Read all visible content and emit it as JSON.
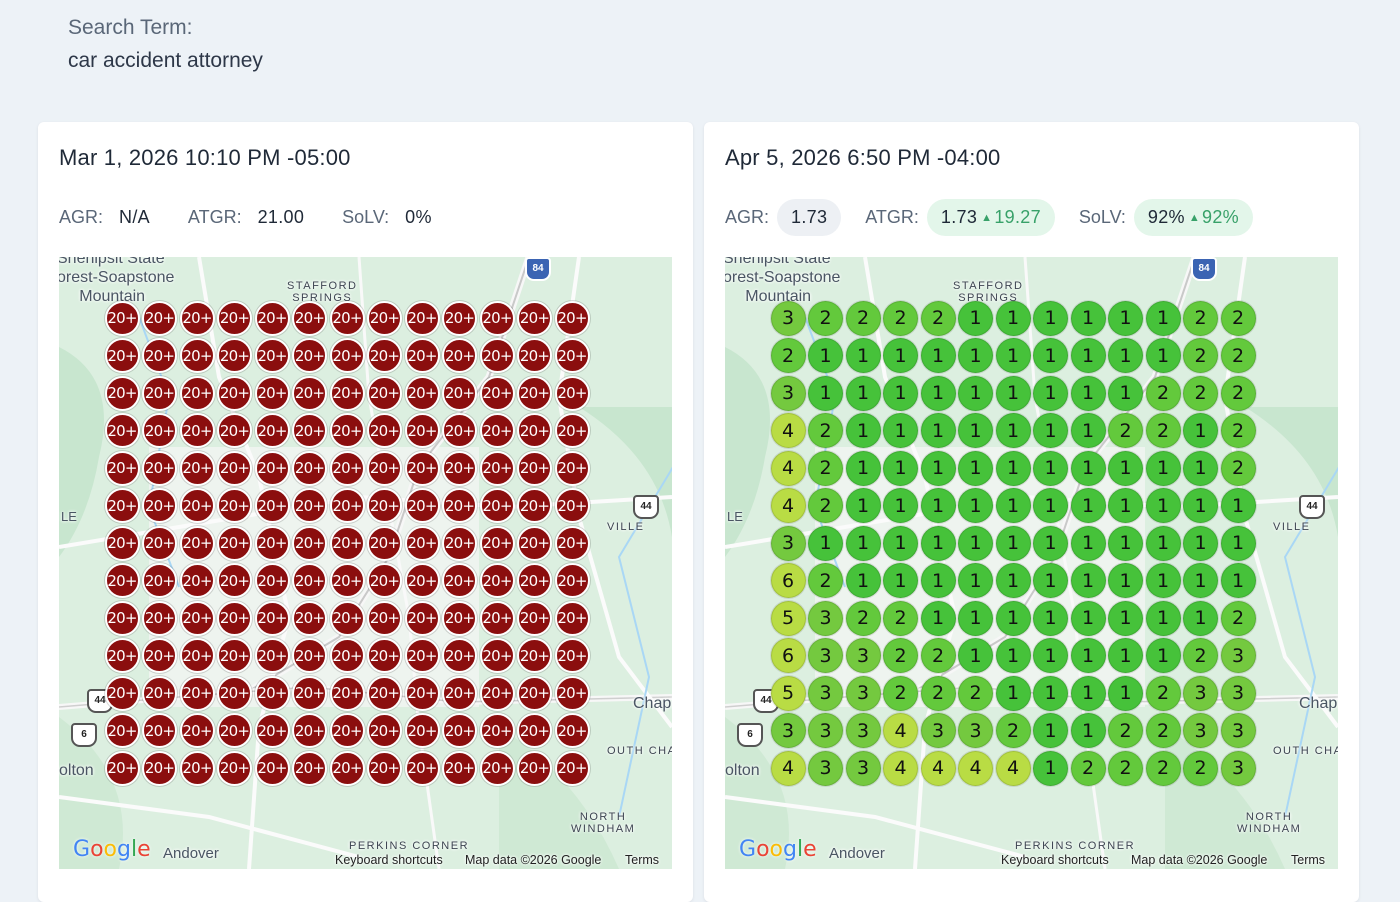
{
  "search": {
    "label": "Search Term:",
    "term": "car accident attorney"
  },
  "colors": {
    "rank_1": "#46c23a",
    "rank_2": "#63c93c",
    "rank_3": "#74c93f",
    "rank_4_6": "#b9dc44",
    "rank_20_plus": "#8b0e0e",
    "improvement": "#38a169"
  },
  "map": {
    "labels": {
      "park": [
        "Shenipsit State",
        "orest-Soapstone",
        "Mountain"
      ],
      "stafford": [
        "STAFFORD",
        "SPRINGS"
      ],
      "le": "LE",
      "olton": "olton",
      "andover": "Andover",
      "perkins": "PERKINS CORNER",
      "north_windham": [
        "NORTH",
        "WINDHAM"
      ],
      "chapl": "Chapl",
      "ville": "VILLE",
      "south_cha": "OUTH CHA"
    },
    "shields": {
      "i84": "84",
      "us44_a": "44",
      "us44_b": "44",
      "r6": "6"
    },
    "attribution": {
      "logo": "Google",
      "keyboard": "Keyboard shortcuts",
      "mapdata": "Map data ©2026 Google",
      "terms": "Terms"
    }
  },
  "cards": [
    {
      "date": "Mar 1, 2026 10:10 PM -05:00",
      "agr_label": "AGR:",
      "agr": "N/A",
      "atgr_label": "ATGR:",
      "atgr": "21.00",
      "atgr_delta": "",
      "solv_label": "SoLV:",
      "solv": "0%",
      "solv_delta": "",
      "grid": [
        [
          "20+",
          "20+",
          "20+",
          "20+",
          "20+",
          "20+",
          "20+",
          "20+",
          "20+",
          "20+",
          "20+",
          "20+",
          "20+"
        ],
        [
          "20+",
          "20+",
          "20+",
          "20+",
          "20+",
          "20+",
          "20+",
          "20+",
          "20+",
          "20+",
          "20+",
          "20+",
          "20+"
        ],
        [
          "20+",
          "20+",
          "20+",
          "20+",
          "20+",
          "20+",
          "20+",
          "20+",
          "20+",
          "20+",
          "20+",
          "20+",
          "20+"
        ],
        [
          "20+",
          "20+",
          "20+",
          "20+",
          "20+",
          "20+",
          "20+",
          "20+",
          "20+",
          "20+",
          "20+",
          "20+",
          "20+"
        ],
        [
          "20+",
          "20+",
          "20+",
          "20+",
          "20+",
          "20+",
          "20+",
          "20+",
          "20+",
          "20+",
          "20+",
          "20+",
          "20+"
        ],
        [
          "20+",
          "20+",
          "20+",
          "20+",
          "20+",
          "20+",
          "20+",
          "20+",
          "20+",
          "20+",
          "20+",
          "20+",
          "20+"
        ],
        [
          "20+",
          "20+",
          "20+",
          "20+",
          "20+",
          "20+",
          "20+",
          "20+",
          "20+",
          "20+",
          "20+",
          "20+",
          "20+"
        ],
        [
          "20+",
          "20+",
          "20+",
          "20+",
          "20+",
          "20+",
          "20+",
          "20+",
          "20+",
          "20+",
          "20+",
          "20+",
          "20+"
        ],
        [
          "20+",
          "20+",
          "20+",
          "20+",
          "20+",
          "20+",
          "20+",
          "20+",
          "20+",
          "20+",
          "20+",
          "20+",
          "20+"
        ],
        [
          "20+",
          "20+",
          "20+",
          "20+",
          "20+",
          "20+",
          "20+",
          "20+",
          "20+",
          "20+",
          "20+",
          "20+",
          "20+"
        ],
        [
          "20+",
          "20+",
          "20+",
          "20+",
          "20+",
          "20+",
          "20+",
          "20+",
          "20+",
          "20+",
          "20+",
          "20+",
          "20+"
        ],
        [
          "20+",
          "20+",
          "20+",
          "20+",
          "20+",
          "20+",
          "20+",
          "20+",
          "20+",
          "20+",
          "20+",
          "20+",
          "20+"
        ],
        [
          "20+",
          "20+",
          "20+",
          "20+",
          "20+",
          "20+",
          "20+",
          "20+",
          "20+",
          "20+",
          "20+",
          "20+",
          "20+"
        ]
      ]
    },
    {
      "date": "Apr 5, 2026 6:50 PM -04:00",
      "agr_label": "AGR:",
      "agr": "1.73",
      "atgr_label": "ATGR:",
      "atgr": "1.73",
      "atgr_delta": "19.27",
      "solv_label": "SoLV:",
      "solv": "92%",
      "solv_delta": "92%",
      "grid": [
        [
          "3",
          "2",
          "2",
          "2",
          "2",
          "1",
          "1",
          "1",
          "1",
          "1",
          "1",
          "2",
          "2"
        ],
        [
          "2",
          "1",
          "1",
          "1",
          "1",
          "1",
          "1",
          "1",
          "1",
          "1",
          "1",
          "2",
          "2"
        ],
        [
          "3",
          "1",
          "1",
          "1",
          "1",
          "1",
          "1",
          "1",
          "1",
          "1",
          "2",
          "2",
          "2"
        ],
        [
          "4",
          "2",
          "1",
          "1",
          "1",
          "1",
          "1",
          "1",
          "1",
          "2",
          "2",
          "1",
          "2"
        ],
        [
          "4",
          "2",
          "1",
          "1",
          "1",
          "1",
          "1",
          "1",
          "1",
          "1",
          "1",
          "1",
          "2"
        ],
        [
          "4",
          "2",
          "1",
          "1",
          "1",
          "1",
          "1",
          "1",
          "1",
          "1",
          "1",
          "1",
          "1"
        ],
        [
          "3",
          "1",
          "1",
          "1",
          "1",
          "1",
          "1",
          "1",
          "1",
          "1",
          "1",
          "1",
          "1"
        ],
        [
          "6",
          "2",
          "1",
          "1",
          "1",
          "1",
          "1",
          "1",
          "1",
          "1",
          "1",
          "1",
          "1"
        ],
        [
          "5",
          "3",
          "2",
          "2",
          "1",
          "1",
          "1",
          "1",
          "1",
          "1",
          "1",
          "1",
          "2"
        ],
        [
          "6",
          "3",
          "3",
          "2",
          "2",
          "1",
          "1",
          "1",
          "1",
          "1",
          "1",
          "2",
          "3"
        ],
        [
          "5",
          "3",
          "3",
          "2",
          "2",
          "2",
          "1",
          "1",
          "1",
          "1",
          "2",
          "3",
          "3"
        ],
        [
          "3",
          "3",
          "3",
          "4",
          "3",
          "3",
          "2",
          "1",
          "1",
          "2",
          "2",
          "3",
          "3"
        ],
        [
          "4",
          "3",
          "3",
          "4",
          "4",
          "4",
          "4",
          "1",
          "2",
          "2",
          "2",
          "2",
          "3"
        ]
      ]
    }
  ]
}
